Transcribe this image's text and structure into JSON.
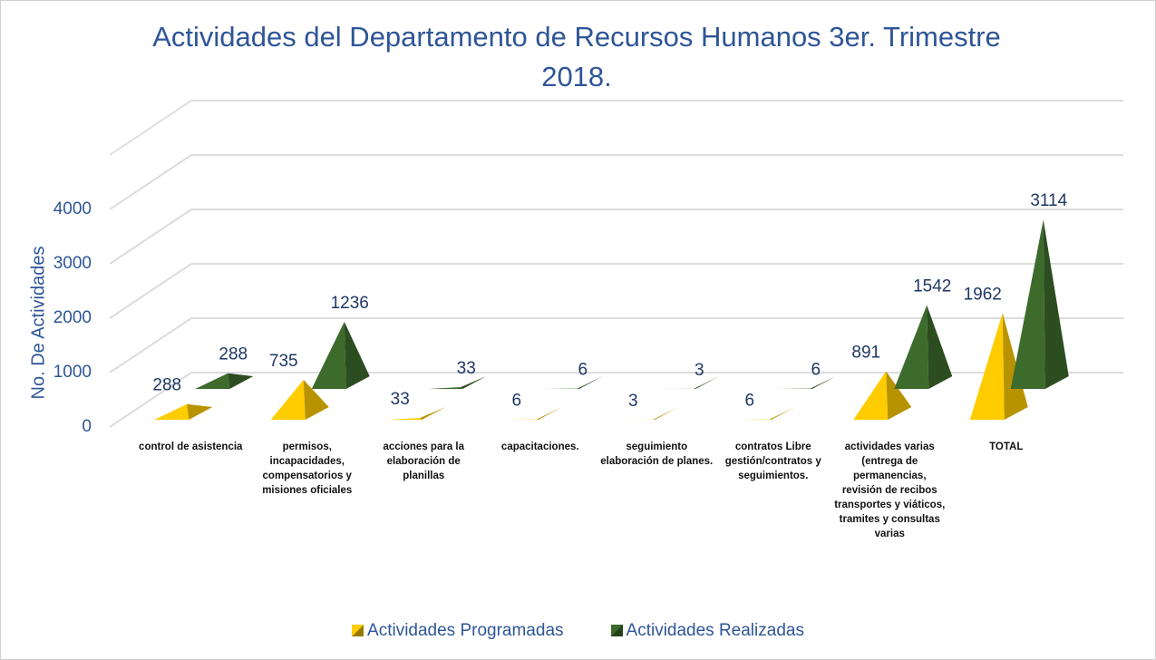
{
  "chart_data": {
    "type": "bar",
    "title": "Actividades del Departamento de Recursos Humanos 3er. Trimestre 2018.",
    "y_label": "No. De Actividades",
    "categories": [
      "control de asistencia",
      "permisos, incapacidades, compensatorios y misiones oficiales",
      "acciones para la elaboración de planillas",
      "capacitaciones.",
      "seguimiento elaboración de planes.",
      "contratos Libre gestión/contratos y seguimientos.",
      "actividades varias (entrega de permanencias, revisión de recibos transportes y viáticos, tramites y consultas varias",
      "TOTAL"
    ],
    "series": [
      {
        "name": "Actividades Programadas",
        "color": "#ffcc00",
        "values": [
          288,
          735,
          33,
          6,
          3,
          6,
          891,
          1962
        ]
      },
      {
        "name": "Actividades Realizadas",
        "color": "#3d6b2c",
        "values": [
          288,
          1236,
          33,
          6,
          3,
          6,
          1542,
          3114
        ]
      }
    ],
    "ylim": [
      0,
      5000
    ],
    "yticks": [
      0,
      1000,
      2000,
      3000,
      4000
    ],
    "grid": true
  }
}
